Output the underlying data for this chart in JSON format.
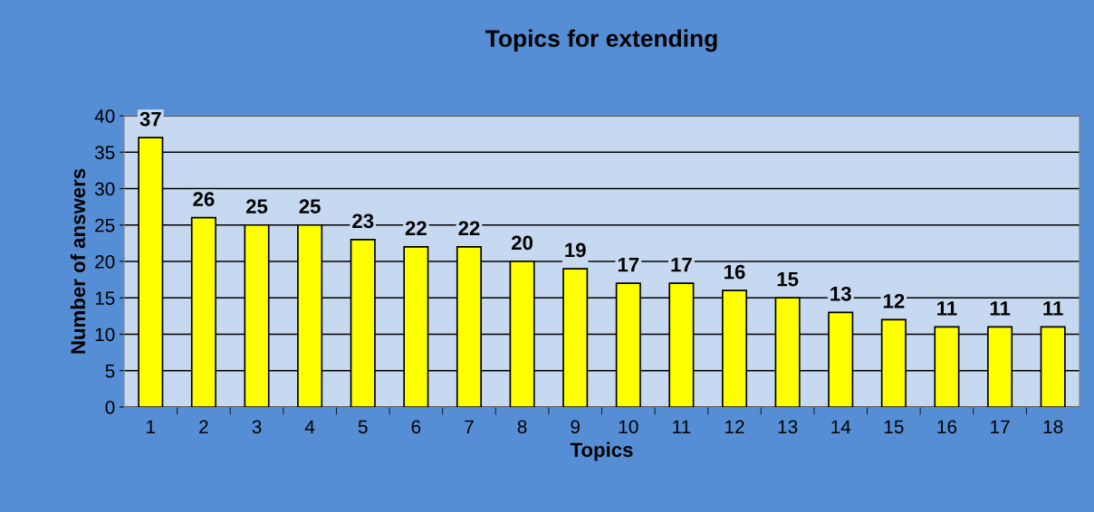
{
  "chart_data": {
    "type": "bar",
    "title": "Topics for extending",
    "xlabel": "Topics",
    "ylabel": "Number of answers",
    "categories": [
      "1",
      "2",
      "3",
      "4",
      "5",
      "6",
      "7",
      "8",
      "9",
      "10",
      "11",
      "12",
      "13",
      "14",
      "15",
      "16",
      "17",
      "18"
    ],
    "values": [
      37,
      26,
      25,
      25,
      23,
      22,
      22,
      20,
      19,
      17,
      17,
      16,
      15,
      13,
      12,
      11,
      11,
      11
    ],
    "color": "#ffff00",
    "ylim": [
      0,
      40
    ],
    "yticks": [
      0,
      5,
      10,
      15,
      20,
      25,
      30,
      35,
      40
    ],
    "grid": "y",
    "data_labels": true,
    "legend": false
  }
}
